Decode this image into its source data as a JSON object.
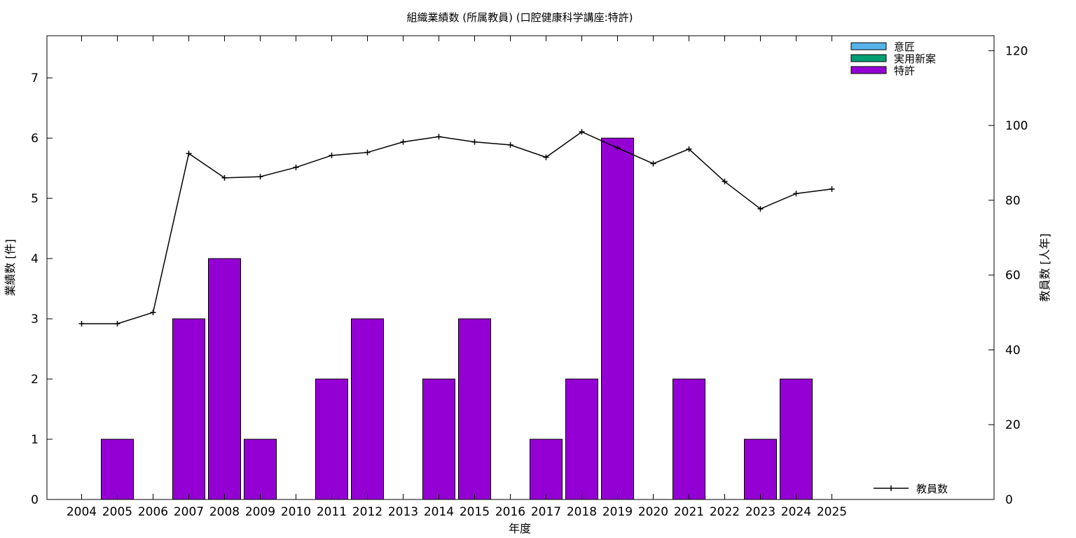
{
  "chart_data": {
    "type": "bar",
    "title": "組織業績数 (所属教員) (口腔健康科学講座:特許)",
    "xlabel": "年度",
    "ylabel": "業績数 [件]",
    "y2label": "教員数 [人年]",
    "categories": [
      "2004",
      "2005",
      "2006",
      "2007",
      "2008",
      "2009",
      "2010",
      "2011",
      "2012",
      "2013",
      "2014",
      "2015",
      "2016",
      "2017",
      "2018",
      "2019",
      "2020",
      "2021",
      "2022",
      "2023",
      "2024",
      "2025"
    ],
    "ylim": [
      0,
      7.7
    ],
    "yticks": [
      0,
      1,
      2,
      3,
      4,
      5,
      6,
      7
    ],
    "y2lim": [
      0,
      124
    ],
    "y2ticks": [
      0,
      20,
      40,
      60,
      80,
      100,
      120
    ],
    "series": [
      {
        "name": "意匠",
        "kind": "bar",
        "color": "#56b4e9",
        "values": [
          0,
          0,
          0,
          0,
          0,
          0,
          0,
          0,
          0,
          0,
          0,
          0,
          0,
          0,
          0,
          0,
          0,
          0,
          0,
          0,
          0,
          0
        ]
      },
      {
        "name": "実用新案",
        "kind": "bar",
        "color": "#009e73",
        "values": [
          0,
          0,
          0,
          0,
          0,
          0,
          0,
          0,
          0,
          0,
          0,
          0,
          0,
          0,
          0,
          0,
          0,
          0,
          0,
          0,
          0,
          0
        ]
      },
      {
        "name": "特許",
        "kind": "bar",
        "color": "#9400d3",
        "values": [
          0,
          1,
          0,
          3,
          4,
          1,
          0,
          2,
          3,
          0,
          2,
          3,
          0,
          1,
          2,
          6,
          0,
          2,
          0,
          1,
          2,
          0
        ]
      },
      {
        "name": "教員数",
        "kind": "line",
        "axis": "right",
        "color": "#000000",
        "values": [
          47,
          47,
          50,
          92.5,
          86,
          86.3,
          88.8,
          92,
          92.8,
          95.6,
          97,
          95.6,
          94.8,
          91.5,
          98.3,
          94,
          89.8,
          93.7,
          85,
          77.7,
          81.8,
          83
        ]
      }
    ],
    "legend": {
      "bars_position": "top-right",
      "line_position": "bottom-right"
    }
  }
}
